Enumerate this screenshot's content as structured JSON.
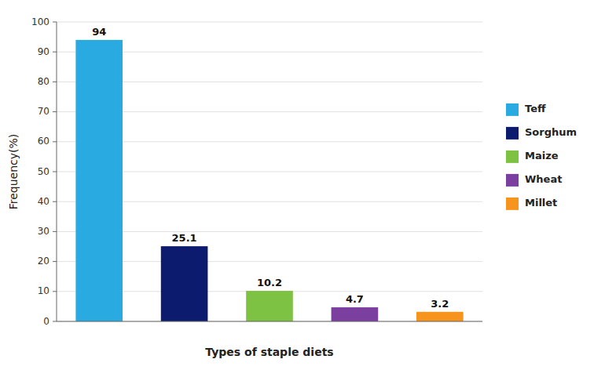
{
  "chart_data": {
    "type": "bar",
    "categories": [
      "Teff",
      "Sorghum",
      "Maize",
      "Wheat",
      "Millet"
    ],
    "values": [
      94,
      25.1,
      10.2,
      4.7,
      3.2
    ],
    "colors": [
      "#29ABE2",
      "#0D1B6E",
      "#7DC242",
      "#7B3FA0",
      "#F7941D"
    ],
    "xlabel": "Types of staple diets",
    "ylabel": "Frequency(%)",
    "ylim": [
      0,
      100
    ],
    "yticks": [
      0,
      10,
      20,
      30,
      40,
      50,
      60,
      70,
      80,
      90,
      100
    ],
    "grid": true,
    "legend": "right",
    "data_labels": true,
    "tick_labels": "y"
  }
}
